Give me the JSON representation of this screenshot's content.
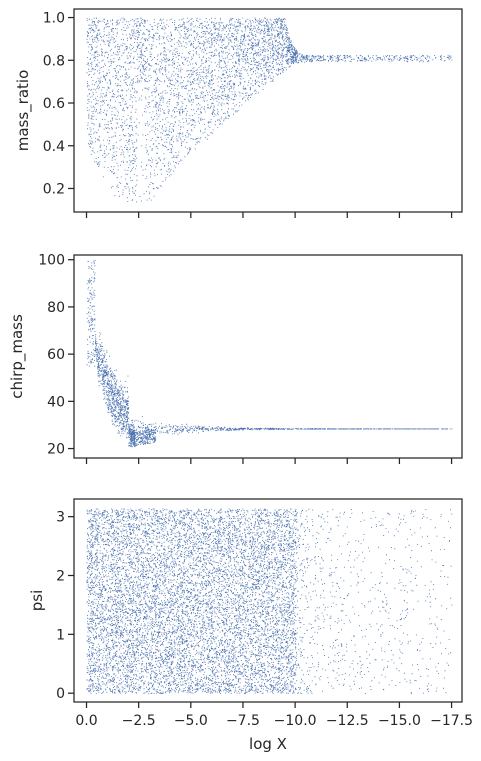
{
  "chart_data": [
    {
      "type": "scatter",
      "ylabel": "mass_ratio",
      "xlabel": "",
      "xlim": [
        0.6,
        -18.0
      ],
      "ylim": [
        0.09,
        1.04
      ],
      "x_inverted": true,
      "x_ticks": [
        "0.0",
        "−2.5",
        "−5.0",
        "−7.5",
        "−10.0",
        "−12.5",
        "−15.0",
        "−17.5"
      ],
      "x_tick_labels_visible": false,
      "y_ticks": [
        0.2,
        0.4,
        0.6,
        0.8,
        1.0
      ],
      "y_tick_labels": [
        "0.2",
        "0.4",
        "0.6",
        "0.8",
        "1.0"
      ],
      "point_color": "#4c72b0",
      "n_points_shown": 30000,
      "series": [
        {
          "x_range": [
            0.0,
            -17.5
          ],
          "y_range": [
            0.13,
            1.0
          ],
          "shape_notes": "dense band at x in [0,-10], lower envelope rising from ~0.13 near x=-2.5 to ~0.8 near x=-10, converging tail at y~0.81 out to x~-17.5, gap near x~-2.5"
        }
      ]
    },
    {
      "type": "scatter",
      "ylabel": "chirp_mass",
      "xlabel": "",
      "xlim": [
        0.6,
        -18.0
      ],
      "ylim": [
        16.0,
        102.0
      ],
      "x_inverted": true,
      "x_ticks": [
        "0.0",
        "−2.5",
        "−5.0",
        "−7.5",
        "−10.0",
        "−12.5",
        "−15.0",
        "−17.5"
      ],
      "x_tick_labels_visible": false,
      "y_ticks": [
        20,
        40,
        60,
        80,
        100
      ],
      "y_tick_labels": [
        "20",
        "40",
        "60",
        "80",
        "100"
      ],
      "point_color": "#4c72b0",
      "n_points_shown": 14000,
      "series": [
        {
          "x_range": [
            0.0,
            -17.5
          ],
          "y_range": [
            21.0,
            100.0
          ],
          "shape_notes": "steep band from ~100 at x=0 down to ~30 near x=-2.3, tail converging to ~28.5 out to x~-17.5, lower branch near 21-26 at x in [-2.2,-3.2]"
        }
      ]
    },
    {
      "type": "scatter",
      "ylabel": "psi",
      "xlabel": "log X",
      "xlim": [
        0.6,
        -18.0
      ],
      "ylim": [
        -0.15,
        3.3
      ],
      "x_inverted": true,
      "x_ticks": [
        0.0,
        -2.5,
        -5.0,
        -7.5,
        -10.0,
        -12.5,
        -15.0,
        -17.5
      ],
      "x_tick_labels": [
        "0.0",
        "−2.5",
        "−5.0",
        "−7.5",
        "−10.0",
        "−12.5",
        "−15.0",
        "−17.5"
      ],
      "x_tick_labels_visible": true,
      "y_ticks": [
        0,
        1,
        2,
        3
      ],
      "y_tick_labels": [
        "0",
        "1",
        "2",
        "3"
      ],
      "point_color": "#4c72b0",
      "n_points_shown": 22000,
      "series": [
        {
          "x_range": [
            0.0,
            -17.5
          ],
          "y_range": [
            0.0,
            3.14
          ],
          "shape_notes": "uniform in y over [0, pi], dense for x in [0,-10], sparse tail to x~-17.5"
        }
      ]
    }
  ]
}
